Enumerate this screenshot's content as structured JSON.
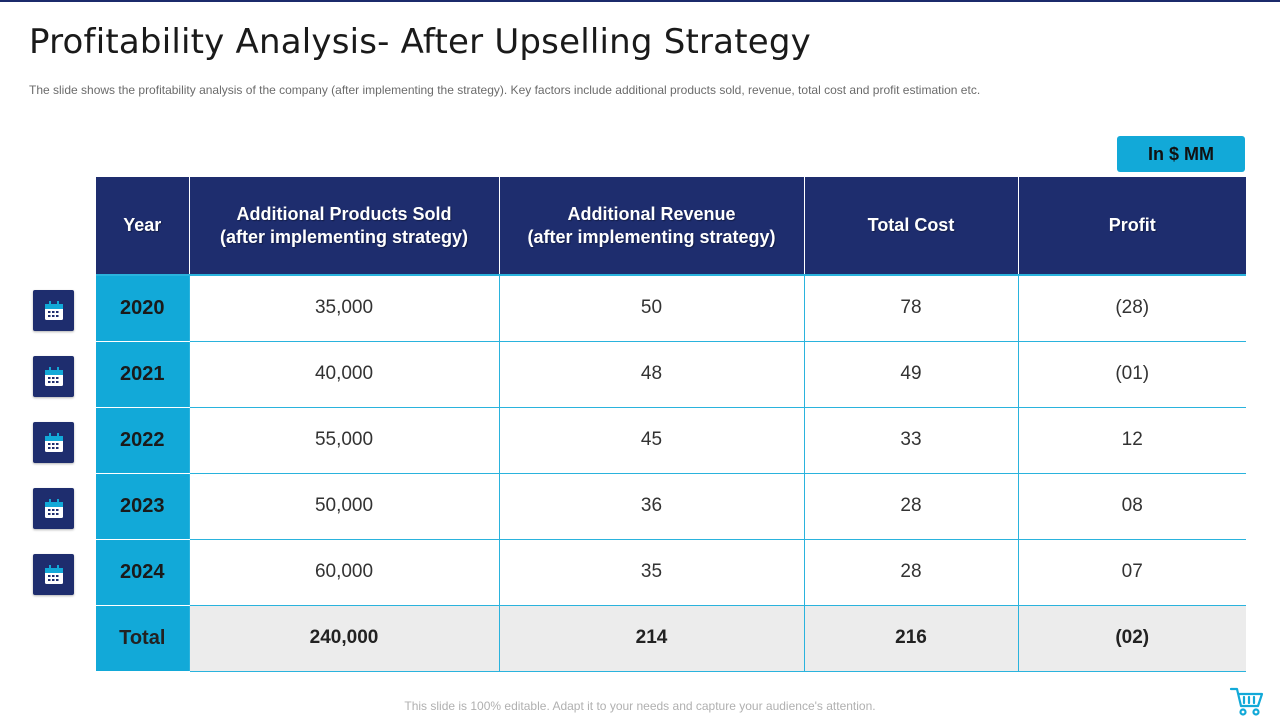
{
  "slide": {
    "title": "Profitability Analysis- After Upselling Strategy",
    "subtitle": "The slide shows the profitability analysis of the company (after implementing the strategy). Key factors include additional products sold, revenue,  total cost and profit estimation etc.",
    "unit_badge": "In $ MM",
    "footer": "This slide is 100% editable. Adapt it to your needs and capture your audience's attention."
  },
  "table": {
    "headers": {
      "year": "Year",
      "products_line1": "Additional Products Sold",
      "products_line2": "(after implementing strategy)",
      "revenue_line1": "Additional Revenue",
      "revenue_line2": "(after implementing strategy)",
      "cost": "Total Cost",
      "profit": "Profit"
    },
    "rows": [
      {
        "year": "2020",
        "products": "35,000",
        "revenue": "50",
        "cost": "78",
        "profit": "(28)"
      },
      {
        "year": "2021",
        "products": "40,000",
        "revenue": "48",
        "cost": "49",
        "profit": "(01)"
      },
      {
        "year": "2022",
        "products": "55,000",
        "revenue": "45",
        "cost": "33",
        "profit": "12"
      },
      {
        "year": "2023",
        "products": "50,000",
        "revenue": "36",
        "cost": "28",
        "profit": "08"
      },
      {
        "year": "2024",
        "products": "60,000",
        "revenue": "35",
        "cost": "28",
        "profit": "07"
      }
    ],
    "total": {
      "label": "Total",
      "products": "240,000",
      "revenue": "214",
      "cost": "216",
      "profit": "(02)"
    }
  },
  "icons": {
    "row_icon": "calendar-icon",
    "corner_icon": "shopping-cart-icon"
  },
  "colors": {
    "header_navy": "#1e2d6e",
    "accent_cyan": "#12a9d8",
    "total_row_gray": "#ececec"
  }
}
